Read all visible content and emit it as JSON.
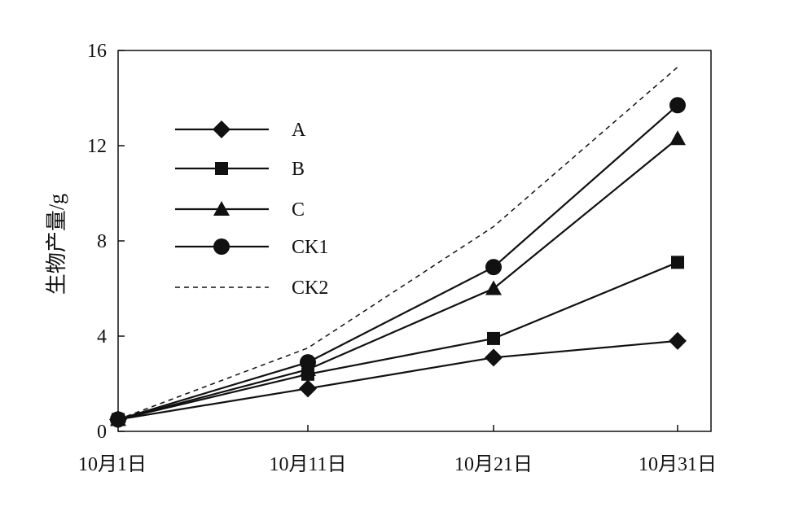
{
  "chart_data": {
    "type": "line",
    "title": "",
    "xlabel": "",
    "ylabel": "生物产量/g",
    "categories": [
      "10月1日",
      "10月11日",
      "10月21日",
      "10月31日"
    ],
    "ylim": [
      0,
      16
    ],
    "yticks": [
      "0",
      "4",
      "8",
      "12",
      "16"
    ],
    "grid": false,
    "legend": "upper-left",
    "series": [
      {
        "name": "A",
        "marker": "diamond",
        "style": "solid",
        "values": [
          0.5,
          1.8,
          3.1,
          3.8
        ]
      },
      {
        "name": "B",
        "marker": "square",
        "style": "solid",
        "values": [
          0.5,
          2.4,
          3.9,
          7.1
        ]
      },
      {
        "name": "C",
        "marker": "triangle",
        "style": "solid",
        "values": [
          0.5,
          2.6,
          6.0,
          12.3
        ]
      },
      {
        "name": "CK1",
        "marker": "circle",
        "style": "solid",
        "values": [
          0.5,
          2.9,
          6.9,
          13.7
        ]
      },
      {
        "name": "CK2",
        "marker": "none",
        "style": "dashed",
        "values": [
          0.5,
          3.5,
          8.6,
          15.3
        ]
      }
    ],
    "colors": {
      "line": "#111111",
      "background": "#ffffff"
    }
  }
}
